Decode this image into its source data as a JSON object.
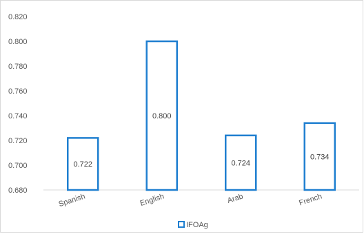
{
  "chart_data": {
    "type": "bar",
    "title": "",
    "xlabel": "",
    "ylabel": "",
    "categories": [
      "Spanish",
      "English",
      "Arab",
      "French"
    ],
    "series": [
      {
        "name": "IFOAg",
        "values": [
          0.722,
          0.8,
          0.724,
          0.734
        ],
        "labels": [
          "0.722",
          "0.800",
          "0.724",
          "0.734"
        ]
      }
    ],
    "ylim": [
      0.68,
      0.82
    ],
    "yticks": [
      "0.680",
      "0.700",
      "0.720",
      "0.740",
      "0.760",
      "0.780",
      "0.800",
      "0.820"
    ],
    "grid": false,
    "legend_position": "bottom",
    "bar_style": "outline",
    "colors": {
      "bar_stroke": "#1f7fd0",
      "axis": "#d9d9d9",
      "text": "#595959"
    }
  }
}
